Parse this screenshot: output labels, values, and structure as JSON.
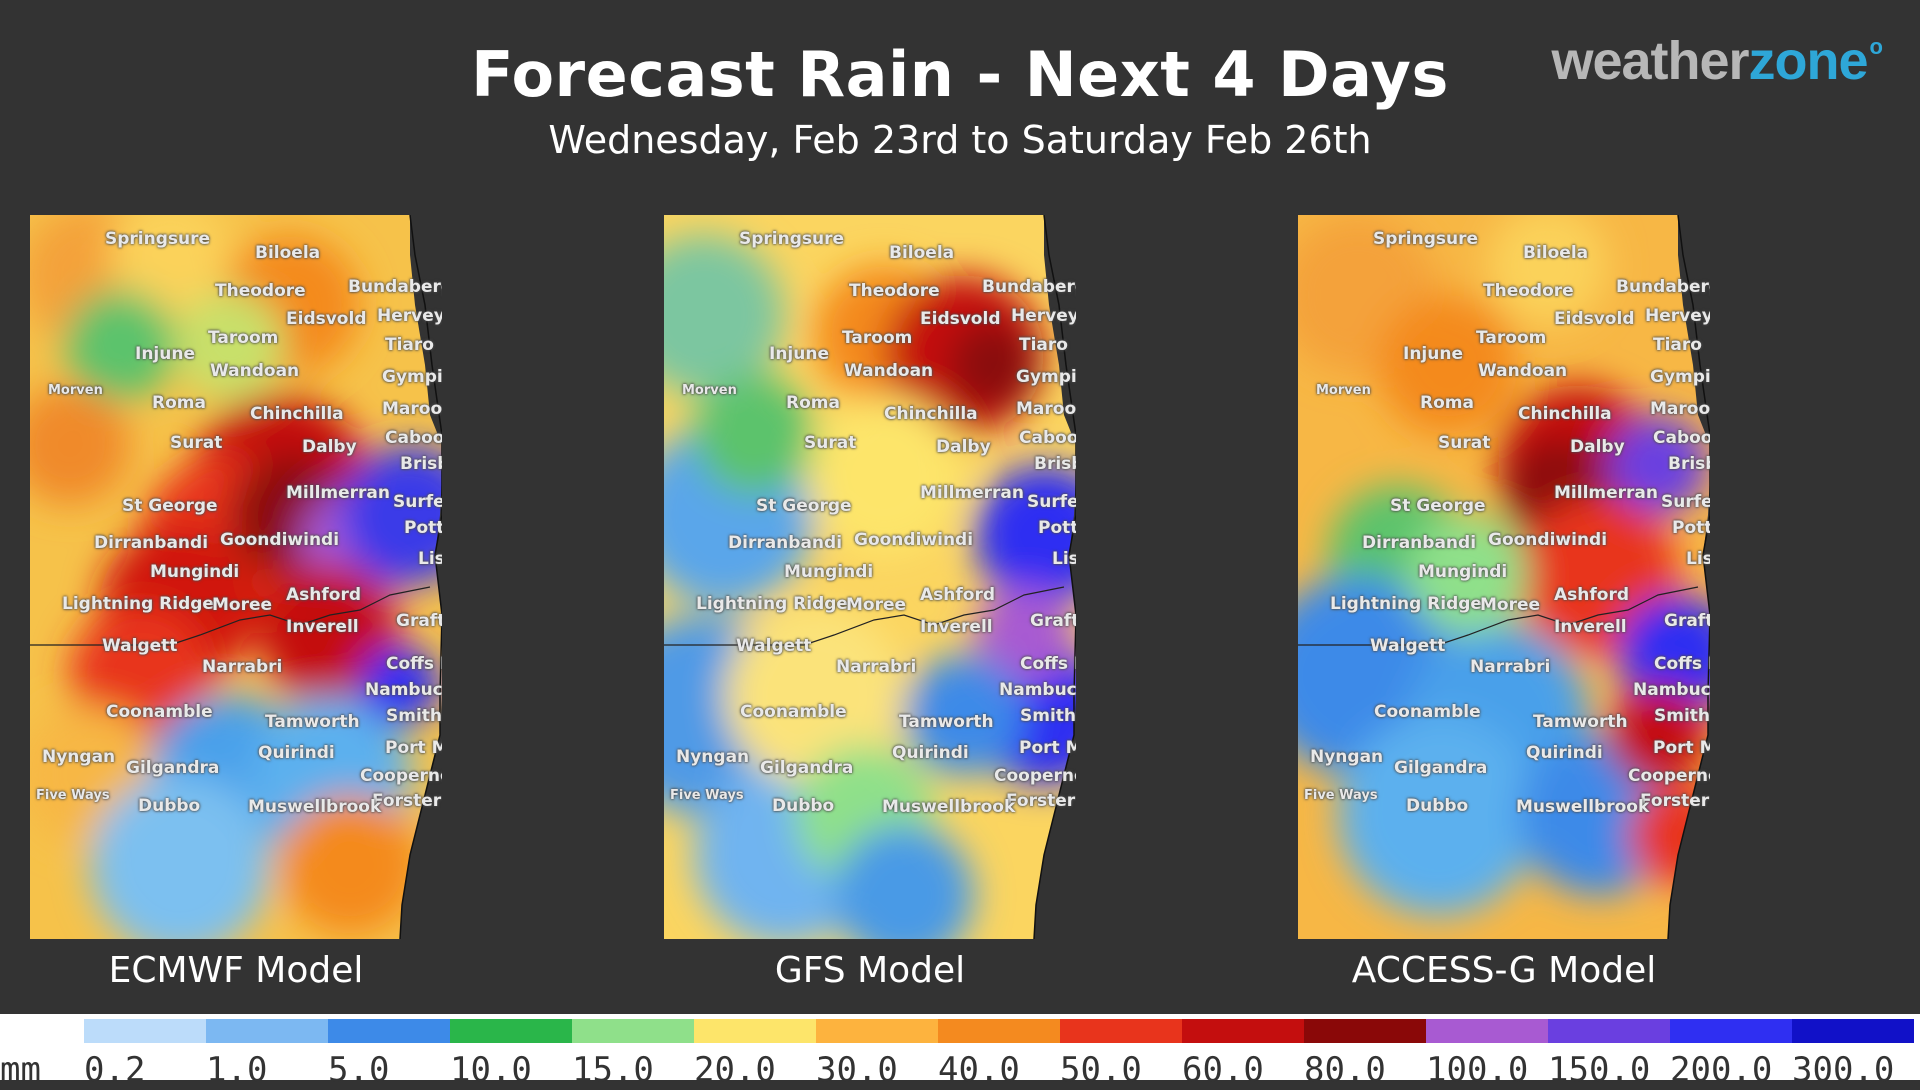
{
  "title": "Forecast Rain - Next 4 Days",
  "subtitle": "Wednesday, Feb 23rd to Saturday Feb 26th",
  "logo": {
    "part1": "weather",
    "part2": "zone",
    "mark": "o"
  },
  "colors": {
    "background": "#333333",
    "logo_grey": "#b7b7b7",
    "logo_blue": "#2ea7d8"
  },
  "panels": [
    {
      "id": "ecmwf",
      "label": "ECMWF Model"
    },
    {
      "id": "gfs",
      "label": "GFS Model"
    },
    {
      "id": "access",
      "label": "ACCESS-G Model"
    }
  ],
  "towns": [
    "Springsure",
    "Biloela",
    "Theodore",
    "Bundaberg",
    "Eidsvold",
    "Hervey Bay",
    "Taroom",
    "Tiaro",
    "Injune",
    "Wandoan",
    "Gympie",
    "Morven",
    "Roma",
    "Chinchilla",
    "Maroochydore",
    "Caboolture",
    "Surat",
    "Dalby",
    "Brisbane",
    "Millmerran",
    "Surfers Paradise",
    "St George",
    "Pottsville Beach",
    "Dirranbandi",
    "Goondiwindi",
    "Lismore",
    "Mungindi",
    "Ashford",
    "Lightning Ridge",
    "Moree",
    "Grafton",
    "Inverell",
    "Walgett",
    "Narrabri",
    "Coffs Harbour",
    "Nambucca Heads",
    "Coonamble",
    "Smithtown",
    "Tamworth",
    "Port Macquarie",
    "Nyngan",
    "Quirindi",
    "Gilgandra",
    "Coopernook",
    "Five Ways",
    "Forster",
    "Dubbo",
    "Muswellbrook"
  ],
  "legend": {
    "unit": "mm",
    "values": [
      "0.2",
      "1.0",
      "5.0",
      "10.0",
      "15.0",
      "20.0",
      "30.0",
      "40.0",
      "50.0",
      "60.0",
      "80.0",
      "100.0",
      "150.0",
      "200.0",
      "300.0"
    ],
    "colors": [
      "#bcdcfa",
      "#7cb8f2",
      "#3d8ae8",
      "#2ab64a",
      "#8fe08a",
      "#fde56a",
      "#fdb33e",
      "#f48a1f",
      "#e8341c",
      "#c40e0e",
      "#8a0808",
      "#a85ad2",
      "#6a3fe0",
      "#2f2ff2",
      "#1111c8"
    ]
  }
}
